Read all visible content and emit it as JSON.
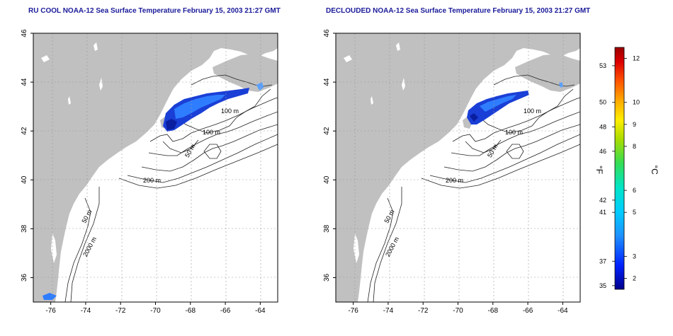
{
  "panels": [
    {
      "title": "RU COOL NOAA-12 Sea Surface Temperature February 15, 2003 21:27 GMT",
      "contour_labels": [
        "100 m",
        "100 m",
        "50 m",
        "200 m",
        "50 m",
        "2000 m"
      ]
    },
    {
      "title": "DECLOUDED NOAA-12 Sea Surface Temperature February 15, 2003 21:27 GMT",
      "contour_labels": [
        "100 m",
        "100 m",
        "50 m",
        "200 m",
        "50 m",
        "2000 m"
      ]
    }
  ],
  "axes": {
    "x_ticks": [
      "-76",
      "-74",
      "-72",
      "-70",
      "-68",
      "-66",
      "-64"
    ],
    "y_ticks": [
      "36",
      "38",
      "40",
      "42",
      "44",
      "46"
    ],
    "x_range": [
      -77,
      -63
    ],
    "y_range": [
      35,
      46
    ]
  },
  "colorbar": {
    "unit_f": "°F",
    "unit_c": "°C",
    "f_ticks": [
      "53",
      "50",
      "48",
      "46",
      "42",
      "41",
      "37",
      "35"
    ],
    "c_ticks": [
      "12",
      "10",
      "9",
      "8",
      "6",
      "5",
      "3",
      "2"
    ],
    "colors": [
      "#00008b",
      "#0033ff",
      "#1e90ff",
      "#00ccff",
      "#00e5d0",
      "#33dd66",
      "#aadd00",
      "#ffee00",
      "#ffaa00",
      "#ff5500",
      "#dd0000",
      "#990000"
    ]
  },
  "colors": {
    "land": "#c0c0c0",
    "water": "#ffffff",
    "sst_cold": "#1a3fd6",
    "sst_mid": "#2f7dff",
    "title": "#1a1a9a"
  }
}
